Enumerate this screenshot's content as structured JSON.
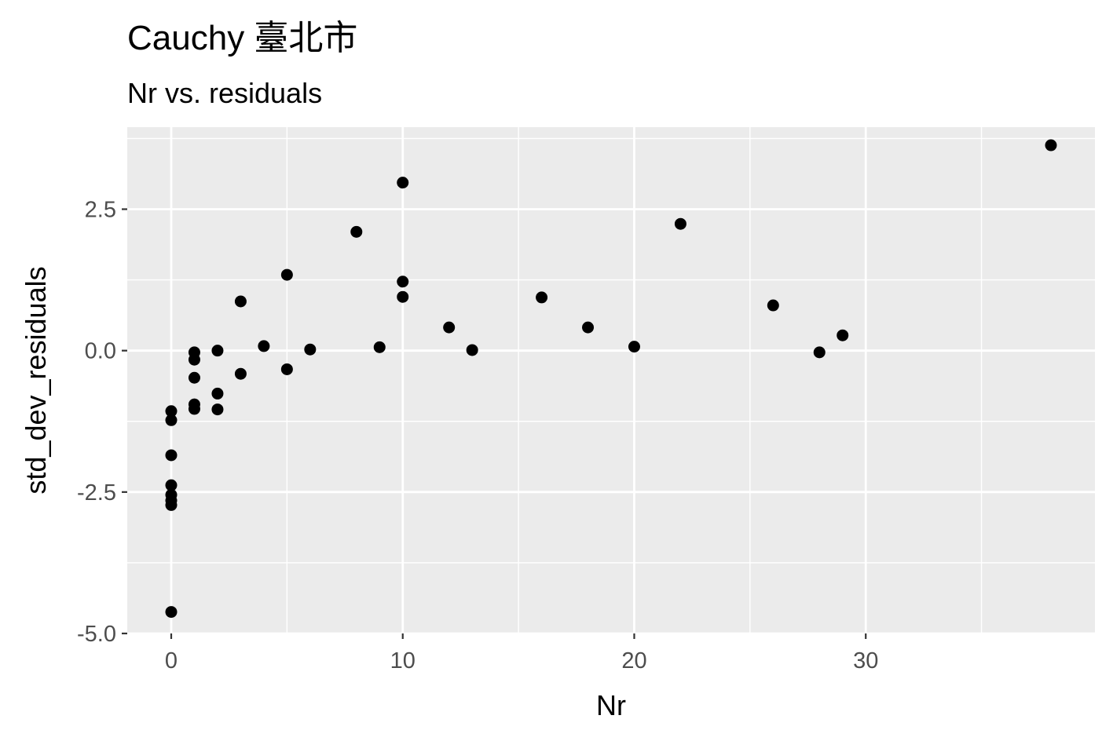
{
  "chart_data": {
    "type": "scatter",
    "title": "Cauchy 臺北市",
    "subtitle": "Nr vs. residuals",
    "xlabel": "Nr",
    "ylabel": "std_dev_residuals",
    "xlim": [
      -1.9,
      39.9
    ],
    "ylim": [
      -5.0,
      3.95
    ],
    "x_ticks": [
      0,
      10,
      20,
      30
    ],
    "x_tick_labels": [
      "0",
      "10",
      "20",
      "30"
    ],
    "x_minor_ticks": [
      5,
      15,
      25,
      35
    ],
    "y_ticks": [
      -5.0,
      -2.5,
      0.0,
      2.5
    ],
    "y_tick_labels": [
      "-5.0",
      "-2.5",
      "0.0",
      "2.5"
    ],
    "y_minor_ticks": [
      -3.75,
      -1.25,
      1.25,
      3.75
    ],
    "grid": true,
    "legend": "none",
    "colors": {
      "panel_background": "#ebebeb",
      "grid_line": "#ffffff",
      "point": "#000000",
      "tick_label": "#4d4d4d",
      "axis_tick": "#333333"
    },
    "points": [
      {
        "x": 0,
        "y": -1.07
      },
      {
        "x": 0,
        "y": -1.23
      },
      {
        "x": 0,
        "y": -1.85
      },
      {
        "x": 0,
        "y": -2.38
      },
      {
        "x": 0,
        "y": -2.55
      },
      {
        "x": 0,
        "y": -2.65
      },
      {
        "x": 0,
        "y": -2.73
      },
      {
        "x": 0,
        "y": -4.62
      },
      {
        "x": 1,
        "y": -0.03
      },
      {
        "x": 1,
        "y": -0.16
      },
      {
        "x": 1,
        "y": -0.48
      },
      {
        "x": 1,
        "y": -0.95
      },
      {
        "x": 1,
        "y": -1.03
      },
      {
        "x": 2,
        "y": 0.0
      },
      {
        "x": 2,
        "y": -0.76
      },
      {
        "x": 2,
        "y": -1.04
      },
      {
        "x": 3,
        "y": 0.87
      },
      {
        "x": 3,
        "y": -0.41
      },
      {
        "x": 4,
        "y": 0.08
      },
      {
        "x": 5,
        "y": 1.34
      },
      {
        "x": 5,
        "y": -0.33
      },
      {
        "x": 6,
        "y": 0.02
      },
      {
        "x": 8,
        "y": 2.1
      },
      {
        "x": 9,
        "y": 0.06
      },
      {
        "x": 10,
        "y": 2.97
      },
      {
        "x": 10,
        "y": 1.22
      },
      {
        "x": 10,
        "y": 0.95
      },
      {
        "x": 12,
        "y": 0.41
      },
      {
        "x": 13,
        "y": 0.01
      },
      {
        "x": 16,
        "y": 0.94
      },
      {
        "x": 18,
        "y": 0.41
      },
      {
        "x": 20,
        "y": 0.07
      },
      {
        "x": 22,
        "y": 2.24
      },
      {
        "x": 26,
        "y": 0.8
      },
      {
        "x": 28,
        "y": -0.03
      },
      {
        "x": 29,
        "y": 0.27
      },
      {
        "x": 38,
        "y": 3.63
      }
    ]
  }
}
